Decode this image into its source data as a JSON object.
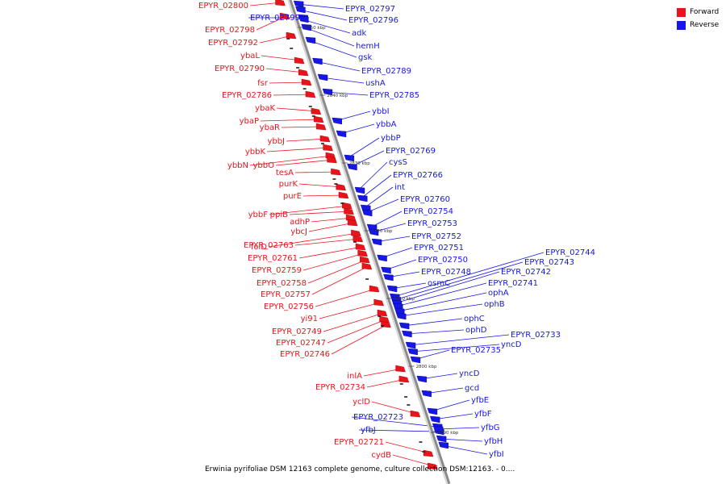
{
  "legend": {
    "forward_label": "Forward",
    "reverse_label": "Reverse",
    "forward_color": "#e8141c",
    "reverse_color": "#1616e6"
  },
  "caption": "Erwinia pyrifoliae DSM 12163 complete genome, culture collection DSM:12163. - 0....",
  "axis_ticks": [
    "2850 kbp",
    "2840 kbp",
    "2830 kbp",
    "2820 kbp",
    "2810 kbp",
    "2800 kbp",
    "2790 kbp"
  ],
  "forward_genes": [
    "EPYR_02800",
    "EPYR_02798",
    "EPYR_02792",
    "ybaL",
    "EPYR_02790",
    "fsr",
    "EPYR_02786",
    "ybaK",
    "ybaP",
    "ybaR",
    "ybbJ",
    "ybbK",
    "ybbN",
    "ybbO",
    "tesA",
    "purK",
    "purE",
    "ybbF",
    "ppiB",
    "adhP",
    "ybcJ",
    "folD",
    "EPYR_02763",
    "EPYR_02761",
    "EPYR_02759",
    "EPYR_02758",
    "EPYR_02757",
    "EPYR_02756",
    "yi91",
    "EPYR_02749",
    "EPYR_02747",
    "EPYR_02746",
    "inlA",
    "EPYR_02734",
    "yclD",
    "EPYR_02721",
    "cydB"
  ],
  "reverse_genes": [
    "EPYR_02799",
    "EPYR_02723",
    "yfbJ",
    "EPYR_02797",
    "EPYR_02796",
    "adk",
    "hemH",
    "gsk",
    "EPYR_02789",
    "ushA",
    "EPYR_02785",
    "ybbI",
    "ybbA",
    "ybbP",
    "EPYR_02769",
    "cysS",
    "EPYR_02766",
    "int",
    "EPYR_02760",
    "EPYR_02754",
    "EPYR_02753",
    "EPYR_02752",
    "EPYR_02751",
    "EPYR_02750",
    "EPYR_02748",
    "osmC",
    "EPYR_02744",
    "EPYR_02743",
    "EPYR_02742",
    "EPYR_02741",
    "ophA",
    "ophB",
    "ophC",
    "ophD",
    "EPYR_02733",
    "yncD",
    "EPYR_02735",
    "yncD",
    "gcd",
    "yfbE",
    "yfbF",
    "yfbG",
    "yfbH",
    "yfbI"
  ]
}
